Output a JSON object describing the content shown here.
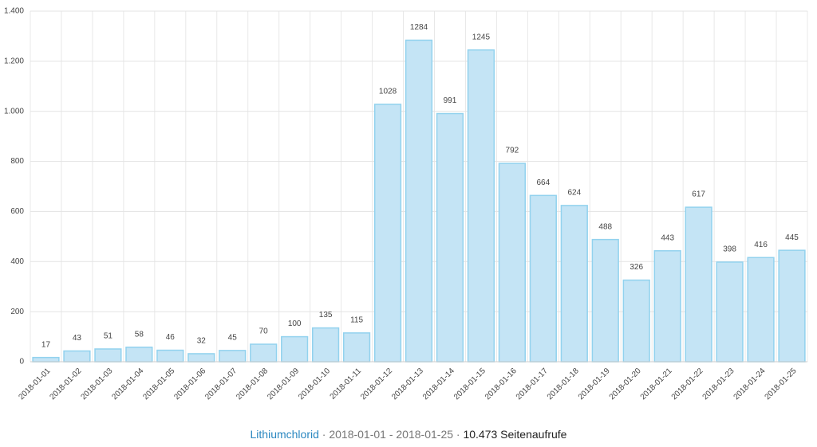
{
  "chart_data": {
    "type": "bar",
    "categories": [
      "2018-01-01",
      "2018-01-02",
      "2018-01-03",
      "2018-01-04",
      "2018-01-05",
      "2018-01-06",
      "2018-01-07",
      "2018-01-08",
      "2018-01-09",
      "2018-01-10",
      "2018-01-11",
      "2018-01-12",
      "2018-01-13",
      "2018-01-14",
      "2018-01-15",
      "2018-01-16",
      "2018-01-17",
      "2018-01-18",
      "2018-01-19",
      "2018-01-20",
      "2018-01-21",
      "2018-01-22",
      "2018-01-23",
      "2018-01-24",
      "2018-01-25"
    ],
    "values": [
      17,
      43,
      51,
      58,
      46,
      32,
      45,
      70,
      100,
      135,
      115,
      1028,
      1284,
      991,
      1245,
      792,
      664,
      624,
      488,
      326,
      443,
      617,
      398,
      416,
      445
    ],
    "color": "#c4e4f5",
    "border_color": "#92d2ee",
    "ylim": [
      0,
      1400
    ],
    "yticks": [
      0,
      200,
      400,
      600,
      800,
      {
        "value": 1000,
        "label": "1.000"
      },
      {
        "value": 1200,
        "label": "1.200"
      },
      {
        "value": 1400,
        "label": "1.400"
      }
    ],
    "grid": true
  },
  "footer": {
    "link": "Lithiumchlorid",
    "separator": "·",
    "range": "2018-01-01 - 2018-01-25",
    "views": "10.473 Seitenaufrufe"
  }
}
